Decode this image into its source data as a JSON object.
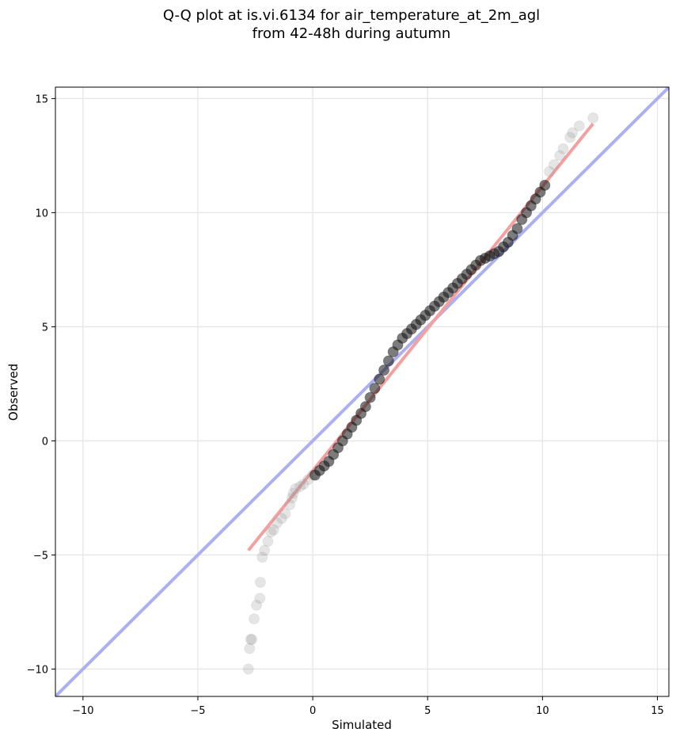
{
  "chart_data": {
    "type": "scatter",
    "title_lines": [
      "Q-Q plot at is.vi.6134 for air_temperature_at_2m_agl",
      "from 42-48h during autumn"
    ],
    "xlabel": "Simulated",
    "ylabel": "Observed",
    "xlim": [
      -11.2,
      15.5
    ],
    "ylim": [
      -11.2,
      15.5
    ],
    "xticks": [
      -10,
      -5,
      0,
      5,
      10,
      15
    ],
    "yticks": [
      -10,
      -5,
      0,
      5,
      10,
      15
    ],
    "xtick_labels": [
      "−10",
      "−5",
      "0",
      "5",
      "10",
      "15"
    ],
    "ytick_labels": [
      "−10",
      "−5",
      "0",
      "5",
      "10",
      "15"
    ],
    "grid": true,
    "series": [
      {
        "role": "quantile points (tails, light)",
        "color": "#999999",
        "x": [
          -2.8,
          -2.75,
          -2.7,
          -2.65,
          -2.55,
          -2.45,
          -2.3,
          -2.28,
          -2.2,
          -2.1,
          -1.95,
          -1.82,
          -1.7,
          -1.55,
          -1.35,
          -1.2,
          -1.0,
          -0.9,
          -0.85,
          -0.75,
          -0.55,
          -0.4,
          -0.2,
          0.0,
          12.2,
          11.6,
          11.3,
          11.2,
          10.9,
          10.75,
          10.5,
          10.3
        ],
        "y": [
          -10.0,
          -9.1,
          -8.7,
          -8.7,
          -7.8,
          -7.2,
          -6.9,
          -6.2,
          -5.1,
          -4.8,
          -4.4,
          -4.0,
          -3.9,
          -3.6,
          -3.4,
          -3.2,
          -2.8,
          -2.5,
          -2.3,
          -2.1,
          -2.0,
          -1.9,
          -1.7,
          -1.5,
          14.15,
          13.8,
          13.5,
          13.3,
          12.8,
          12.5,
          12.1,
          11.8
        ]
      },
      {
        "role": "quantile points (dense body)",
        "color": "#111111",
        "x": [
          0.1,
          0.3,
          0.5,
          0.7,
          0.9,
          1.1,
          1.3,
          1.5,
          1.7,
          1.9,
          2.1,
          2.3,
          2.5,
          2.7,
          2.9,
          3.1,
          3.3,
          3.5,
          3.7,
          3.9,
          4.1,
          4.3,
          4.5,
          4.7,
          4.9,
          5.1,
          5.3,
          5.5,
          5.7,
          5.9,
          6.1,
          6.3,
          6.5,
          6.7,
          6.9,
          7.1,
          7.3,
          7.5,
          7.7,
          7.9,
          8.1,
          8.3,
          8.5,
          8.7,
          8.9,
          9.1,
          9.3,
          9.5,
          9.7,
          9.9,
          10.1
        ],
        "y": [
          -1.5,
          -1.3,
          -1.1,
          -0.9,
          -0.6,
          -0.3,
          0.0,
          0.3,
          0.6,
          0.9,
          1.2,
          1.5,
          1.9,
          2.3,
          2.7,
          3.1,
          3.5,
          3.9,
          4.2,
          4.5,
          4.7,
          4.9,
          5.1,
          5.3,
          5.5,
          5.7,
          5.9,
          6.1,
          6.3,
          6.5,
          6.7,
          6.9,
          7.1,
          7.3,
          7.5,
          7.7,
          7.9,
          8.0,
          8.1,
          8.2,
          8.3,
          8.5,
          8.7,
          9.0,
          9.3,
          9.7,
          10.0,
          10.3,
          10.6,
          10.9,
          11.2
        ]
      }
    ],
    "reference_lines": [
      {
        "role": "1:1 line",
        "color": "#aab0f2",
        "x": [
          -11.2,
          15.5
        ],
        "y": [
          -11.2,
          15.5
        ]
      },
      {
        "role": "linear fit",
        "color": "#f4a0a0",
        "x": [
          -2.8,
          12.2
        ],
        "y": [
          -4.8,
          13.9
        ]
      }
    ]
  }
}
